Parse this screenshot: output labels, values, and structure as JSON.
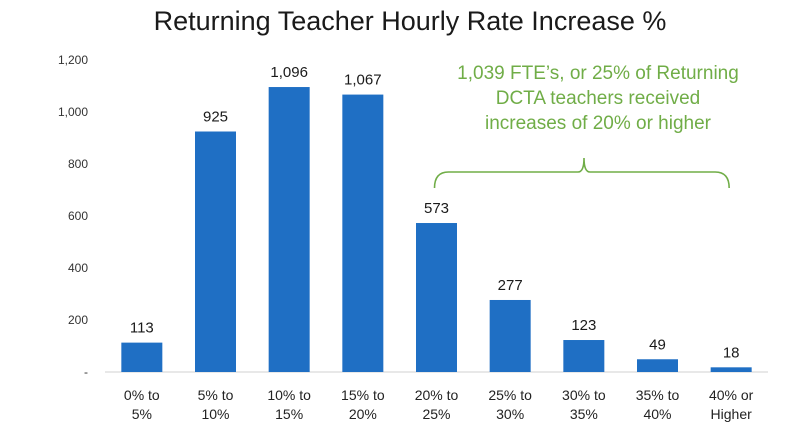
{
  "chart_data": {
    "type": "bar",
    "title": "Returning Teacher Hourly Rate Increase %",
    "categories": [
      [
        "0% to",
        "5%"
      ],
      [
        "5% to",
        "10%"
      ],
      [
        "10% to",
        "15%"
      ],
      [
        "15% to",
        "20%"
      ],
      [
        "20% to",
        "25%"
      ],
      [
        "25% to",
        "30%"
      ],
      [
        "30% to",
        "35%"
      ],
      [
        "35% to",
        "40%"
      ],
      [
        "40% or",
        "Higher"
      ]
    ],
    "values": [
      113,
      925,
      1096,
      1067,
      573,
      277,
      123,
      49,
      18
    ],
    "data_labels": [
      "113",
      "925",
      "1,096",
      "1,067",
      "573",
      "277",
      "123",
      "49",
      "18"
    ],
    "ylim": [
      0,
      1200
    ],
    "y_ticks": [
      0,
      200,
      400,
      600,
      800,
      1000,
      1200
    ],
    "y_tick_labels": [
      "-",
      "200",
      "400",
      "600",
      "800",
      "1,000",
      "1,200"
    ],
    "grid": false,
    "bar_color": "#1f6fc4",
    "annotation": {
      "lines": [
        "1,039 FTE’s, or 25% of Returning",
        "DCTA teachers received",
        "increases of 20% or higher"
      ],
      "color": "#70ad47",
      "bracket_from_category": 4,
      "bracket_to_category": 8
    }
  }
}
